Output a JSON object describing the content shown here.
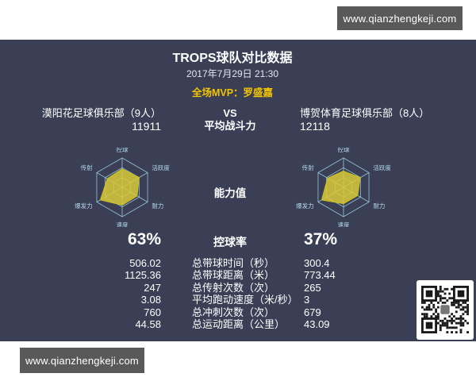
{
  "watermark": {
    "text": "www.qianzhengkeji.com"
  },
  "header": {
    "title": "TROPS球队对比数据",
    "datetime": "2017年7月29日 21:30",
    "mvp_label": "全场MVP：罗盛嘉"
  },
  "matchup": {
    "vs_label": "VS",
    "avg_power_label": "平均战斗力",
    "home": {
      "name": "漠阳花足球俱乐部（9人）",
      "avg_power": "11911"
    },
    "away": {
      "name": "博贺体育足球俱乐部（8人）",
      "avg_power": "12118"
    }
  },
  "ability_label": "能力值",
  "possession": {
    "home_pct": "63%",
    "label": "控球率",
    "away_pct": "37%"
  },
  "stats": [
    {
      "home": "506.02",
      "label": "总带球时间（秒）",
      "away": "300.4"
    },
    {
      "home": "1125.36",
      "label": "总带球距离（米）",
      "away": "773.44"
    },
    {
      "home": "247",
      "label": "总传射次数（次）",
      "away": "265"
    },
    {
      "home": "3.08",
      "label": "平均跑动速度（米/秒）",
      "away": "3"
    },
    {
      "home": "760",
      "label": "总冲刺次数（次）",
      "away": "679"
    },
    {
      "home": "44.58",
      "label": "总运动距离（公里）",
      "away": "43.09"
    }
  ],
  "chart_data": [
    {
      "type": "radar",
      "categories": [
        "控球",
        "活跃度",
        "耐力",
        "速度",
        "爆发力",
        "传射"
      ],
      "values": [
        62,
        66,
        58,
        60,
        85,
        58
      ],
      "max": 100,
      "rings": 3,
      "grid": true
    },
    {
      "type": "radar",
      "categories": [
        "控球",
        "活跃度",
        "耐力",
        "速度",
        "爆发力",
        "传射"
      ],
      "values": [
        55,
        65,
        55,
        55,
        85,
        62
      ],
      "max": 100,
      "rings": 3,
      "grid": true
    }
  ],
  "icons": {
    "qr": "qr-code"
  },
  "colors": {
    "panel_bg": "#3a3f56",
    "accent_yellow": "#f2c500",
    "radar_fill": "#d9ca39",
    "radar_stroke": "#c9bc27",
    "radar_grid": "#9ed2e4",
    "radar_label": "#b7dbe9",
    "watermark_bg": "#595959"
  }
}
